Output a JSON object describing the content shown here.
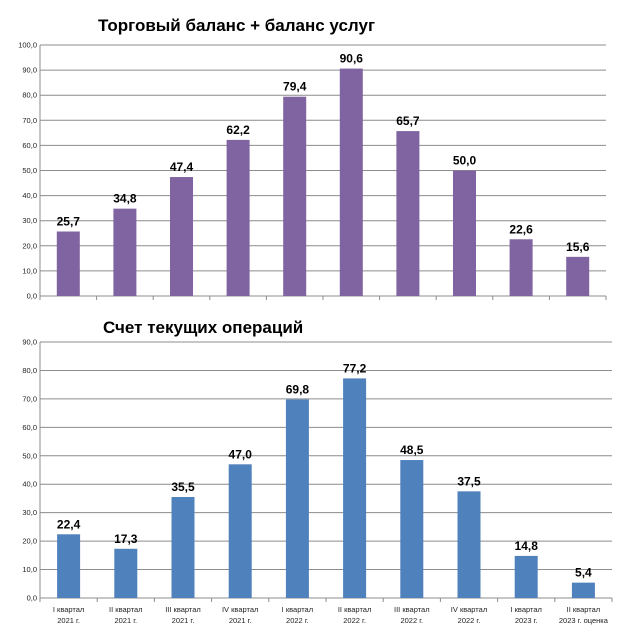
{
  "chart_data": [
    {
      "type": "bar",
      "title": "Торговый баланс + баланс услуг",
      "categories": [
        "",
        "",
        "",
        "",
        "",
        "",
        "",
        "",
        "",
        ""
      ],
      "values": [
        25.7,
        34.8,
        47.4,
        62.2,
        79.4,
        90.6,
        65.7,
        50.0,
        22.6,
        15.6
      ],
      "data_labels": [
        "25,7",
        "34,8",
        "47,4",
        "62,2",
        "79,4",
        "90,6",
        "65,7",
        "50,0",
        "22,6",
        "15,6"
      ],
      "ylim": [
        0,
        100
      ],
      "yticks": [
        "0,0",
        "10,0",
        "20,0",
        "30,0",
        "40,0",
        "50,0",
        "60,0",
        "70,0",
        "80,0",
        "90,0",
        "100,0"
      ],
      "grid": true,
      "color": "#8064a2"
    },
    {
      "type": "bar",
      "title": "Счет текущих операций",
      "categories": [
        [
          "I квартал",
          "2021 г."
        ],
        [
          "II квартал",
          "2021 г."
        ],
        [
          "III квартал",
          "2021 г."
        ],
        [
          "IV квартал",
          "2021 г."
        ],
        [
          "I квартал",
          "2022 г."
        ],
        [
          "II квартал",
          "2022 г."
        ],
        [
          "III квартал",
          "2022 г."
        ],
        [
          "IV квартал",
          "2022 г."
        ],
        [
          "I квартал",
          "2023 г."
        ],
        [
          "II квартал",
          "2023 г. оценка"
        ]
      ],
      "values": [
        22.4,
        17.3,
        35.5,
        47.0,
        69.8,
        77.2,
        48.5,
        37.5,
        14.8,
        5.4
      ],
      "data_labels": [
        "22,4",
        "17,3",
        "35,5",
        "47,0",
        "69,8",
        "77,2",
        "48,5",
        "37,5",
        "14,8",
        "5,4"
      ],
      "ylim": [
        0,
        90
      ],
      "yticks": [
        "0,0",
        "10,0",
        "20,0",
        "30,0",
        "40,0",
        "50,0",
        "60,0",
        "70,0",
        "80,0",
        "90,0"
      ],
      "grid": true,
      "color": "#4f81bd"
    }
  ]
}
